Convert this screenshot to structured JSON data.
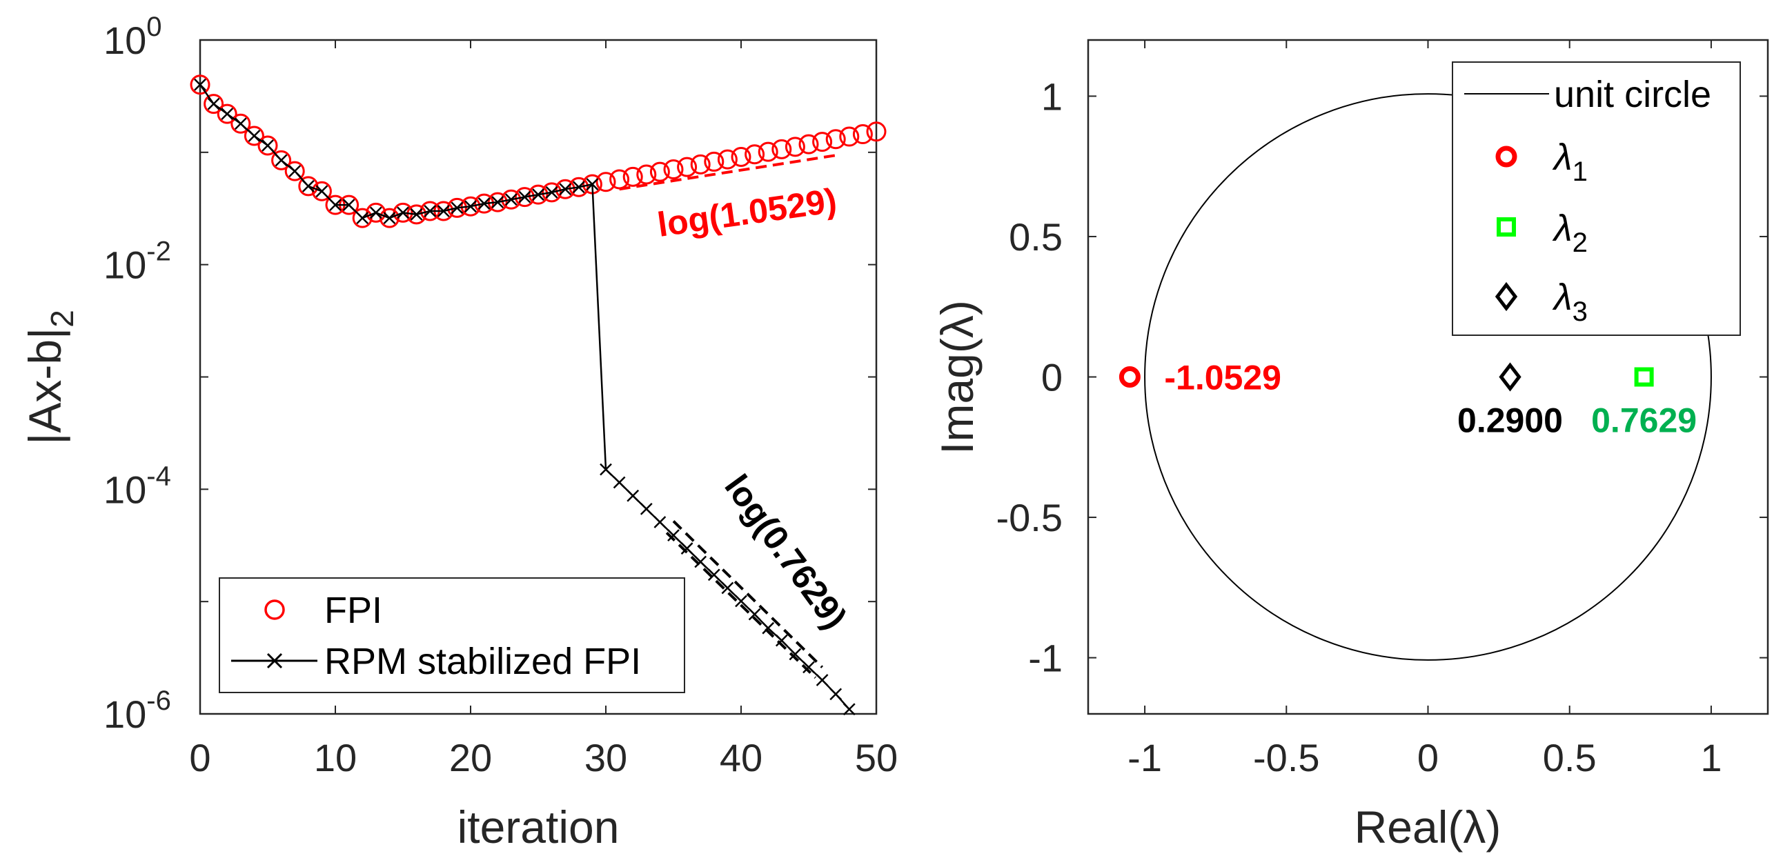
{
  "chart_data": [
    {
      "type": "line",
      "yscale": "log",
      "xlabel": "iteration",
      "ylabel": "|Ax-b|",
      "ylabel_sub": "2",
      "xlim": [
        0,
        50
      ],
      "ylim_exp": [
        -6,
        0
      ],
      "xticks": [
        "0",
        "10",
        "20",
        "30",
        "40",
        "50"
      ],
      "yticks": [
        {
          "base": "10",
          "exp": "-6",
          "value": -6
        },
        {
          "base": "10",
          "exp": "-4",
          "value": -4
        },
        {
          "base": "10",
          "exp": "-2",
          "value": -2
        },
        {
          "base": "10",
          "exp": "0",
          "value": 0
        }
      ],
      "series": [
        {
          "name": "FPI",
          "color": "#ff0000",
          "marker": "circle",
          "x": [
            0,
            1,
            2,
            3,
            4,
            5,
            6,
            7,
            8,
            9,
            10,
            11,
            12,
            13,
            14,
            15,
            16,
            17,
            18,
            19,
            20,
            21,
            22,
            23,
            24,
            25,
            26,
            27,
            28,
            29,
            30,
            31,
            32,
            33,
            34,
            35,
            36,
            37,
            38,
            39,
            40,
            41,
            42,
            43,
            44,
            45,
            46,
            47,
            48,
            49,
            50
          ],
          "y": [
            0.4,
            0.27,
            0.22,
            0.18,
            0.14,
            0.115,
            0.085,
            0.068,
            0.05,
            0.045,
            0.034,
            0.034,
            0.026,
            0.029,
            0.026,
            0.029,
            0.028,
            0.03,
            0.03,
            0.032,
            0.033,
            0.035,
            0.036,
            0.038,
            0.04,
            0.042,
            0.044,
            0.047,
            0.049,
            0.052,
            0.0545,
            0.0575,
            0.0605,
            0.0635,
            0.067,
            0.0705,
            0.074,
            0.078,
            0.0825,
            0.0865,
            0.091,
            0.096,
            0.101,
            0.1065,
            0.112,
            0.118,
            0.124,
            0.131,
            0.138,
            0.145,
            0.153
          ]
        },
        {
          "name": "RPM stabilized FPI",
          "color": "#000000",
          "marker": "x",
          "x": [
            0,
            1,
            2,
            3,
            4,
            5,
            6,
            7,
            8,
            9,
            10,
            11,
            12,
            13,
            14,
            15,
            16,
            17,
            18,
            19,
            20,
            21,
            22,
            23,
            24,
            25,
            26,
            27,
            28,
            29,
            30,
            31,
            32,
            33,
            34,
            35,
            36,
            37,
            38,
            39,
            40,
            41,
            42,
            43,
            44,
            45,
            46,
            47,
            48
          ],
          "y": [
            0.4,
            0.27,
            0.22,
            0.18,
            0.14,
            0.115,
            0.085,
            0.068,
            0.05,
            0.045,
            0.034,
            0.034,
            0.026,
            0.029,
            0.026,
            0.029,
            0.028,
            0.03,
            0.03,
            0.032,
            0.033,
            0.035,
            0.036,
            0.038,
            0.04,
            0.042,
            0.044,
            0.047,
            0.049,
            0.052,
            0.00015,
            0.000115,
            8.75e-05,
            6.68e-05,
            5.1e-05,
            3.89e-05,
            2.97e-05,
            2.26e-05,
            1.73e-05,
            1.32e-05,
            1.01e-05,
            7.7e-06,
            5.8e-06,
            4.5e-06,
            3.4e-06,
            2.6e-06,
            2e-06,
            1.5e-06,
            1.1e-06
          ]
        }
      ],
      "reference_lines": [
        {
          "label": "log(1.0529)",
          "color": "#ff0000",
          "x": [
            31,
            47
          ],
          "y": [
            0.047,
            0.094
          ]
        },
        {
          "label": "log(0.7629)",
          "color": "#000000",
          "x": [
            35,
            46
          ],
          "y": [
            5.2e-05,
            2.6e-06
          ]
        },
        {
          "label": "",
          "color": "#000000",
          "x": [
            34.5,
            45.5
          ],
          "y": [
            4.1e-05,
            2.1e-06
          ]
        }
      ],
      "legend": {
        "position": "bottom-left",
        "entries": [
          {
            "label": "FPI",
            "marker": "circle",
            "color": "#ff0000"
          },
          {
            "label": "RPM stabilized FPI",
            "marker": "x-line",
            "color": "#000000"
          }
        ]
      }
    },
    {
      "type": "scatter",
      "xlabel": "Real(λ)",
      "ylabel": "Imag(λ)",
      "xlim": [
        -1.2,
        1.2
      ],
      "ylim": [
        -1.2,
        1.2
      ],
      "xticks": [
        "-1",
        "-0.5",
        "0",
        "0.5",
        "1"
      ],
      "yticks": [
        "-1",
        "-0.5",
        "0",
        "0.5",
        "1"
      ],
      "tick_values": [
        -1,
        -0.5,
        0,
        0.5,
        1
      ],
      "unit_circle": {
        "label": "unit circle",
        "radius": 1
      },
      "points": [
        {
          "name": "λ",
          "sub": "1",
          "x": -1.0529,
          "y": 0,
          "marker": "circle",
          "color": "#ff0000",
          "label": "-1.0529",
          "label_color": "#ff0000"
        },
        {
          "name": "λ",
          "sub": "2",
          "x": 0.7629,
          "y": 0,
          "marker": "square",
          "color": "#00ff00",
          "label": "0.7629",
          "label_color": "#00b050"
        },
        {
          "name": "λ",
          "sub": "3",
          "x": 0.29,
          "y": 0,
          "marker": "diamond",
          "color": "#000000",
          "label": "0.2900",
          "label_color": "#000000"
        }
      ],
      "legend": {
        "position": "top-right"
      }
    }
  ]
}
